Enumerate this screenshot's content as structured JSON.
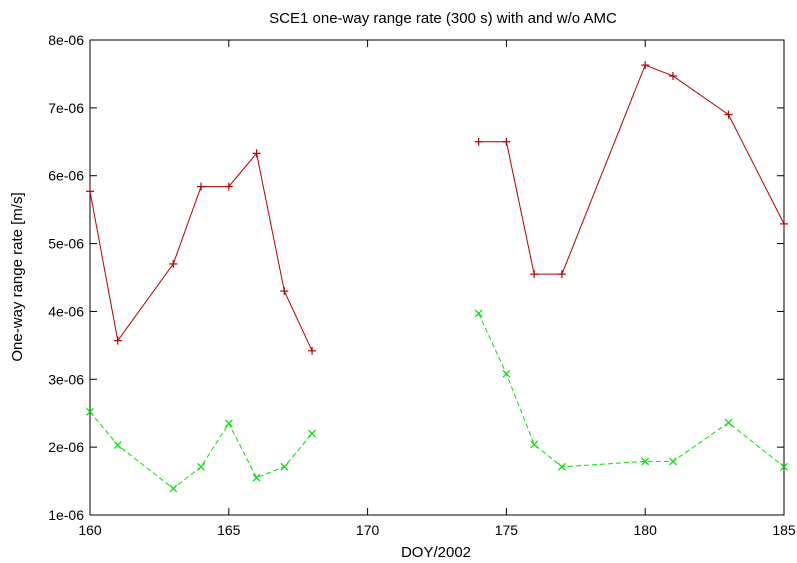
{
  "chart_data": {
    "type": "line",
    "title": "SCE1 one-way range rate (300 s) with and w/o AMC",
    "xlabel": "DOY/2002",
    "ylabel": "One-way range rate [m/s]",
    "xlim": [
      160,
      185
    ],
    "ylim": [
      1e-06,
      8e-06
    ],
    "x_ticks": [
      "160",
      "165",
      "170",
      "175",
      "180",
      "185"
    ],
    "x_tick_values": [
      160,
      165,
      170,
      175,
      180,
      185
    ],
    "y_ticks": [
      "1e-06",
      "2e-06",
      "3e-06",
      "4e-06",
      "5e-06",
      "6e-06",
      "7e-06",
      "8e-06"
    ],
    "y_tick_values": [
      1e-06,
      2e-06,
      3e-06,
      4e-06,
      5e-06,
      6e-06,
      7e-06,
      8e-06
    ],
    "grid": false,
    "series": [
      {
        "color": "#b00000",
        "line_style": "solid",
        "marker": "plus",
        "segments": [
          {
            "x": [
              160,
              161,
              163,
              164,
              165,
              166,
              167,
              168
            ],
            "y": [
              5.77e-06,
              3.57e-06,
              4.7e-06,
              5.84e-06,
              5.84e-06,
              6.33e-06,
              4.3e-06,
              3.42e-06
            ]
          },
          {
            "x": [
              174,
              175,
              176,
              177,
              180,
              181,
              183,
              185
            ],
            "y": [
              6.5e-06,
              6.5e-06,
              4.55e-06,
              4.55e-06,
              7.63e-06,
              7.47e-06,
              6.9e-06,
              5.29e-06
            ]
          }
        ]
      },
      {
        "color": "#00e000",
        "line_style": "dashed",
        "marker": "cross",
        "segments": [
          {
            "x": [
              160,
              161,
              163,
              164,
              165,
              166,
              167,
              168
            ],
            "y": [
              2.52e-06,
              2.03e-06,
              1.39e-06,
              1.71e-06,
              2.35e-06,
              1.55e-06,
              1.71e-06,
              2.2e-06
            ]
          },
          {
            "x": [
              174,
              175,
              176,
              177,
              180,
              181,
              183,
              185
            ],
            "y": [
              3.97e-06,
              3.08e-06,
              2.04e-06,
              1.71e-06,
              1.79e-06,
              1.79e-06,
              2.36e-06,
              1.71e-06
            ]
          }
        ]
      }
    ]
  }
}
